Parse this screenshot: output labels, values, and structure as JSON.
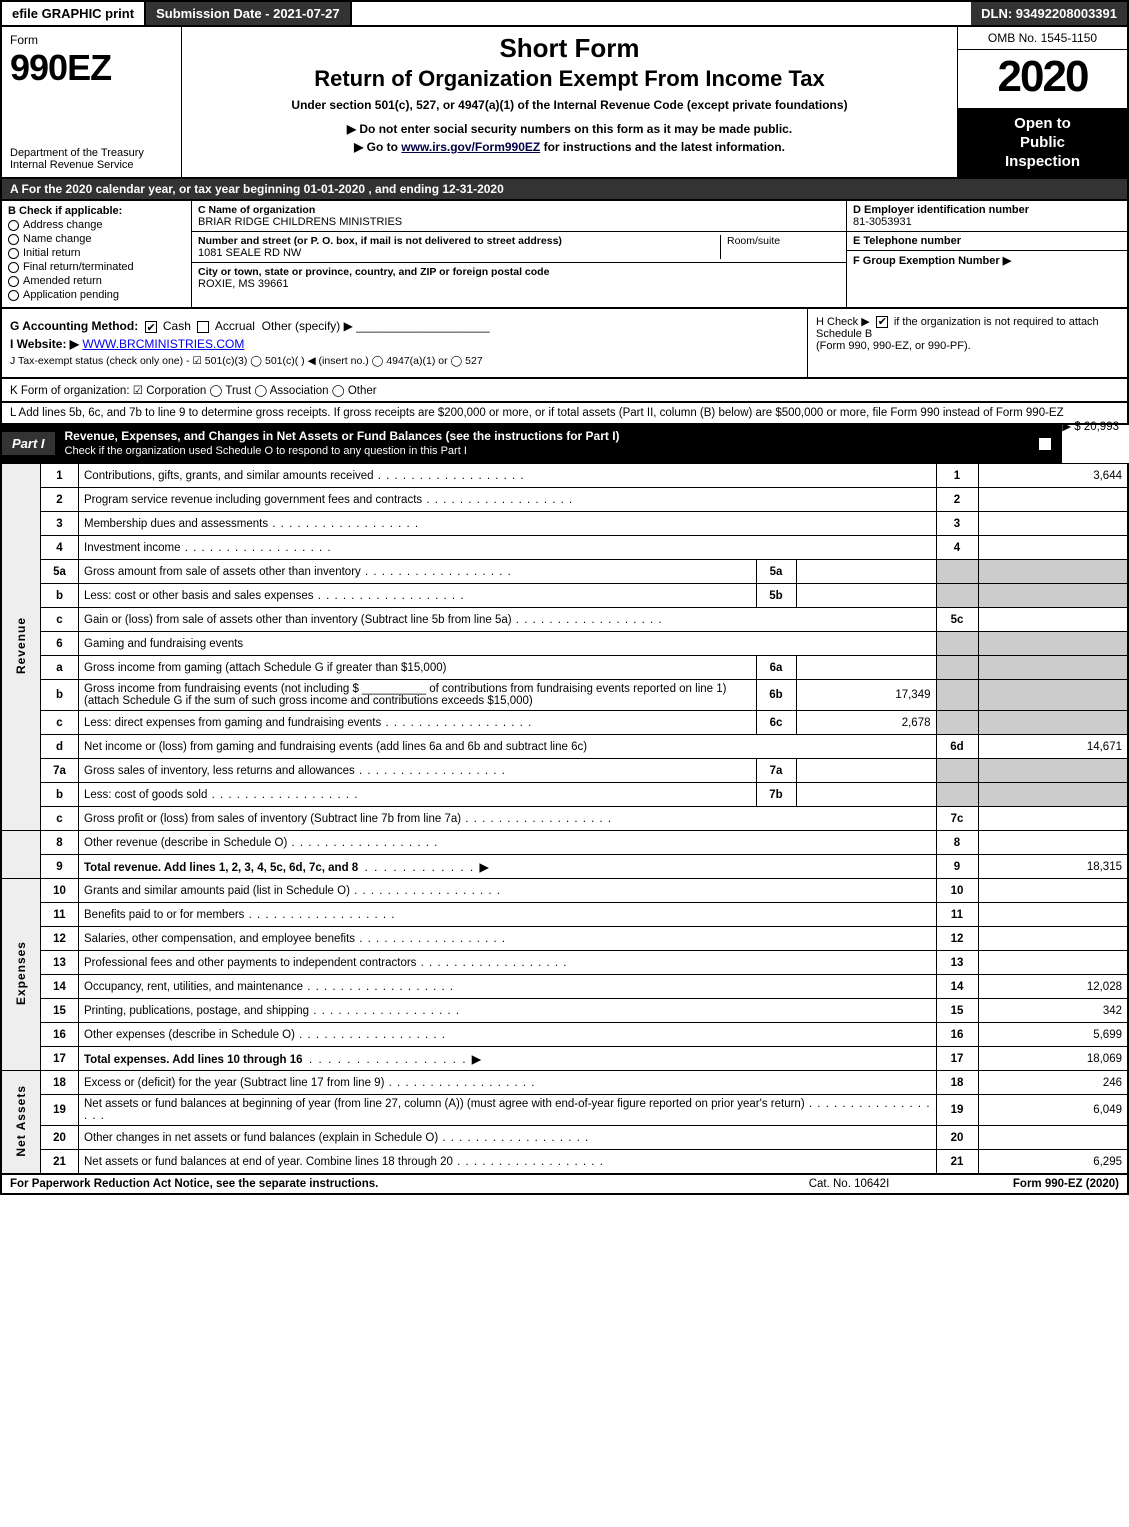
{
  "top": {
    "efile": "efile GRAPHIC print",
    "submission": "Submission Date - 2021-07-27",
    "dln": "DLN: 93492208003391"
  },
  "header": {
    "form_word": "Form",
    "form_id": "990EZ",
    "dept": "Department of the Treasury\nInternal Revenue Service",
    "title1": "Short Form",
    "title2": "Return of Organization Exempt From Income Tax",
    "subtitle": "Under section 501(c), 527, or 4947(a)(1) of the Internal Revenue Code (except private foundations)",
    "note1": "▶ Do not enter social security numbers on this form as it may be made public.",
    "note2_pre": "▶ Go to ",
    "note2_link": "www.irs.gov/Form990EZ",
    "note2_post": " for instructions and the latest information.",
    "omb": "OMB No. 1545-1150",
    "year": "2020",
    "inspection": "Open to\nPublic\nInspection"
  },
  "a_row": "A  For the 2020 calendar year, or tax year beginning 01-01-2020 , and ending 12-31-2020",
  "b": {
    "header": "B  Check if applicable:",
    "options": [
      "Address change",
      "Name change",
      "Initial return",
      "Final return/terminated",
      "Amended return",
      "Application pending"
    ]
  },
  "c": {
    "name_lbl": "C Name of organization",
    "name": "BRIAR RIDGE CHILDRENS MINISTRIES",
    "addr_lbl": "Number and street (or P. O. box, if mail is not delivered to street address)",
    "addr": "1081 SEALE RD NW",
    "room_lbl": "Room/suite",
    "city_lbl": "City or town, state or province, country, and ZIP or foreign postal code",
    "city": "ROXIE, MS  39661"
  },
  "d": {
    "ein_lbl": "D Employer identification number",
    "ein": "81-3053931",
    "tel_lbl": "E Telephone number",
    "grp_lbl": "F Group Exemption Number   ▶"
  },
  "g": {
    "label": "G Accounting Method:",
    "cash": "Cash",
    "accrual": "Accrual",
    "other": "Other (specify) ▶"
  },
  "h": {
    "text1": "H  Check ▶",
    "text2": "if the organization is not required to attach Schedule B",
    "text3": "(Form 990, 990-EZ, or 990-PF)."
  },
  "i": {
    "label": "I Website: ▶",
    "value": "WWW.BRCMINISTRIES.COM"
  },
  "j": "J Tax-exempt status (check only one) - ☑ 501(c)(3)  ◯ 501(c)(  ) ◀ (insert no.)  ◯ 4947(a)(1) or  ◯ 527",
  "k": "K Form of organization:   ☑ Corporation   ◯ Trust   ◯ Association   ◯ Other",
  "l": {
    "text": "L Add lines 5b, 6c, and 7b to line 9 to determine gross receipts. If gross receipts are $200,000 or more, or if total assets (Part II, column (B) below) are $500,000 or more, file Form 990 instead of Form 990-EZ",
    "amount": "▶ $ 20,993"
  },
  "part1": {
    "label": "Part I",
    "title": "Revenue, Expenses, and Changes in Net Assets or Fund Balances (see the instructions for Part I)",
    "sub": "Check if the organization used Schedule O to respond to any question in this Part I"
  },
  "sections": {
    "revenue": "Revenue",
    "expenses": "Expenses",
    "netassets": "Net Assets"
  },
  "lines": {
    "1": {
      "d": "Contributions, gifts, grants, and similar amounts received",
      "n": "1",
      "v": "3,644"
    },
    "2": {
      "d": "Program service revenue including government fees and contracts",
      "n": "2",
      "v": ""
    },
    "3": {
      "d": "Membership dues and assessments",
      "n": "3",
      "v": ""
    },
    "4": {
      "d": "Investment income",
      "n": "4",
      "v": ""
    },
    "5a": {
      "d": "Gross amount from sale of assets other than inventory",
      "sn": "5a",
      "sv": ""
    },
    "5b": {
      "d": "Less: cost or other basis and sales expenses",
      "sn": "5b",
      "sv": ""
    },
    "5c": {
      "d": "Gain or (loss) from sale of assets other than inventory (Subtract line 5b from line 5a)",
      "n": "5c",
      "v": ""
    },
    "6": {
      "d": "Gaming and fundraising events"
    },
    "6a": {
      "d": "Gross income from gaming (attach Schedule G if greater than $15,000)",
      "sn": "6a",
      "sv": ""
    },
    "6b_pre": "Gross income from fundraising events (not including $",
    "6b_mid": "of contributions from fundraising events reported on line 1) (attach Schedule G if the sum of such gross income and contributions exceeds $15,000)",
    "6b": {
      "sn": "6b",
      "sv": "17,349"
    },
    "6c": {
      "d": "Less: direct expenses from gaming and fundraising events",
      "sn": "6c",
      "sv": "2,678"
    },
    "6d": {
      "d": "Net income or (loss) from gaming and fundraising events (add lines 6a and 6b and subtract line 6c)",
      "n": "6d",
      "v": "14,671"
    },
    "7a": {
      "d": "Gross sales of inventory, less returns and allowances",
      "sn": "7a",
      "sv": ""
    },
    "7b": {
      "d": "Less: cost of goods sold",
      "sn": "7b",
      "sv": ""
    },
    "7c": {
      "d": "Gross profit or (loss) from sales of inventory (Subtract line 7b from line 7a)",
      "n": "7c",
      "v": ""
    },
    "8": {
      "d": "Other revenue (describe in Schedule O)",
      "n": "8",
      "v": ""
    },
    "9": {
      "d": "Total revenue. Add lines 1, 2, 3, 4, 5c, 6d, 7c, and 8",
      "n": "9",
      "v": "18,315"
    },
    "10": {
      "d": "Grants and similar amounts paid (list in Schedule O)",
      "n": "10",
      "v": ""
    },
    "11": {
      "d": "Benefits paid to or for members",
      "n": "11",
      "v": ""
    },
    "12": {
      "d": "Salaries, other compensation, and employee benefits",
      "n": "12",
      "v": ""
    },
    "13": {
      "d": "Professional fees and other payments to independent contractors",
      "n": "13",
      "v": ""
    },
    "14": {
      "d": "Occupancy, rent, utilities, and maintenance",
      "n": "14",
      "v": "12,028"
    },
    "15": {
      "d": "Printing, publications, postage, and shipping",
      "n": "15",
      "v": "342"
    },
    "16": {
      "d": "Other expenses (describe in Schedule O)",
      "n": "16",
      "v": "5,699"
    },
    "17": {
      "d": "Total expenses. Add lines 10 through 16",
      "n": "17",
      "v": "18,069"
    },
    "18": {
      "d": "Excess or (deficit) for the year (Subtract line 17 from line 9)",
      "n": "18",
      "v": "246"
    },
    "19": {
      "d": "Net assets or fund balances at beginning of year (from line 27, column (A)) (must agree with end-of-year figure reported on prior year's return)",
      "n": "19",
      "v": "6,049"
    },
    "20": {
      "d": "Other changes in net assets or fund balances (explain in Schedule O)",
      "n": "20",
      "v": ""
    },
    "21": {
      "d": "Net assets or fund balances at end of year. Combine lines 18 through 20",
      "n": "21",
      "v": "6,295"
    }
  },
  "footer": {
    "left": "For Paperwork Reduction Act Notice, see the separate instructions.",
    "mid": "Cat. No. 10642I",
    "right": "Form 990-EZ (2020)"
  }
}
